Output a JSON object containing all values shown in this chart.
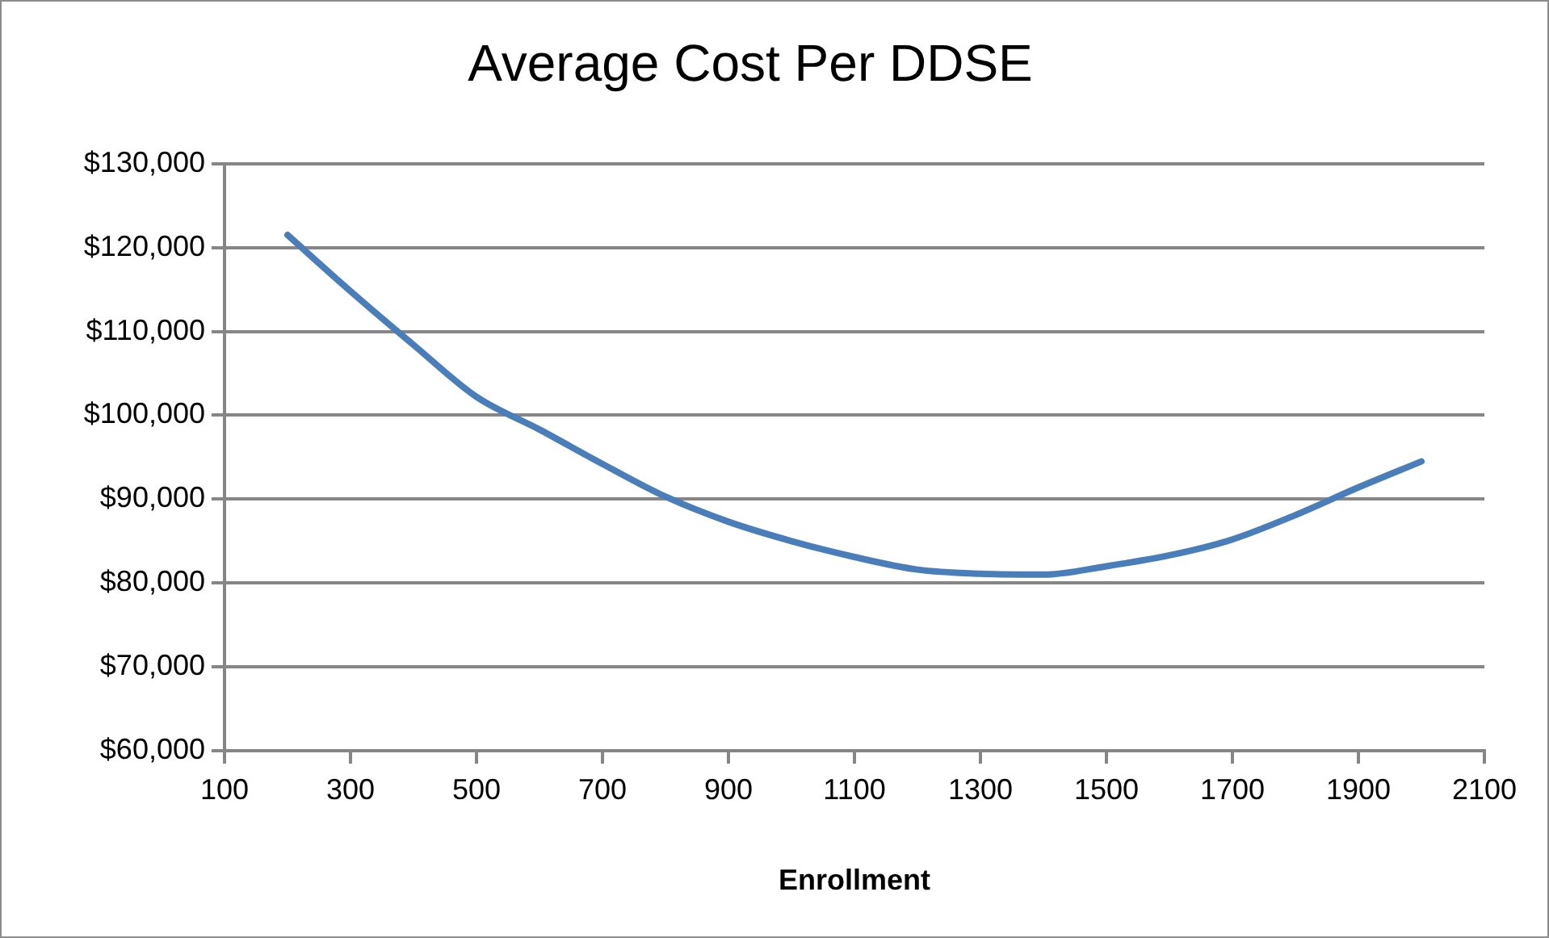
{
  "chart_data": {
    "type": "line",
    "title": "Average Cost Per DDSE",
    "xlabel": "Enrollment",
    "x": [
      200,
      300,
      400,
      500,
      600,
      700,
      800,
      900,
      1000,
      1100,
      1200,
      1300,
      1400,
      1500,
      1600,
      1700,
      1800,
      1900,
      2000
    ],
    "series": [
      {
        "color": "#4a7ebb",
        "values": [
          121500,
          114800,
          108400,
          102200,
          98300,
          94200,
          90300,
          87300,
          85000,
          83100,
          81600,
          81100,
          81000,
          82000,
          83300,
          85200,
          88100,
          91400,
          94500
        ]
      }
    ],
    "xlim": [
      100,
      2100
    ],
    "xticks": [
      100,
      300,
      500,
      700,
      900,
      1100,
      1300,
      1500,
      1700,
      1900,
      2100
    ],
    "ylim": [
      60000,
      130000
    ],
    "yticks": [
      {
        "value": 60000,
        "label": "$60,000"
      },
      {
        "value": 70000,
        "label": "$70,000"
      },
      {
        "value": 80000,
        "label": "$80,000"
      },
      {
        "value": 90000,
        "label": "$90,000"
      },
      {
        "value": 100000,
        "label": "$100,000"
      },
      {
        "value": 110000,
        "label": "$110,000"
      },
      {
        "value": 120000,
        "label": "$120,000"
      },
      {
        "value": 130000,
        "label": "$130,000"
      }
    ],
    "grid": "y",
    "legend": false,
    "marker": "none",
    "line_style": "solid"
  }
}
